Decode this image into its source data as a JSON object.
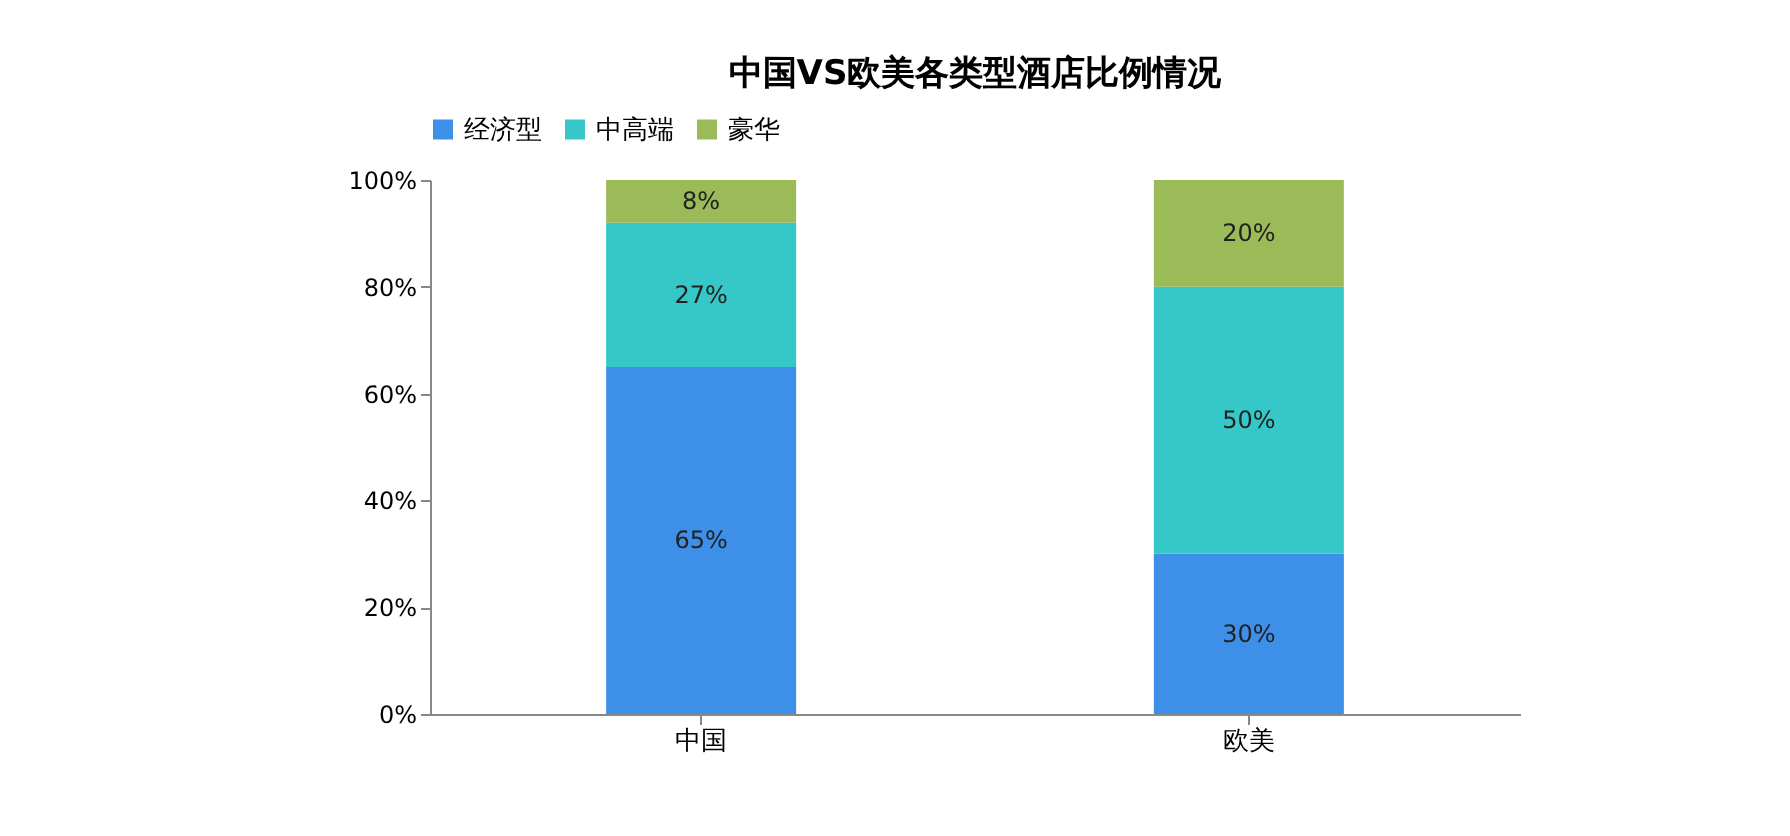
{
  "chart_data": {
    "type": "bar",
    "stacked": true,
    "title": "中国VS欧美各类型酒店比例情况",
    "categories": [
      "中国",
      "欧美"
    ],
    "series": [
      {
        "name": "经济型",
        "color": "#3d8fe8",
        "values": [
          65,
          30
        ],
        "value_labels": [
          "65%",
          "30%"
        ]
      },
      {
        "name": "中高端",
        "color": "#36c8c8",
        "values": [
          27,
          50
        ],
        "value_labels": [
          "27%",
          "50%"
        ]
      },
      {
        "name": "豪华",
        "color": "#9bbb59",
        "values": [
          8,
          20
        ],
        "value_labels": [
          "8%",
          "20%"
        ]
      }
    ],
    "ylim": [
      0,
      100
    ],
    "yticks": [
      {
        "value": 0,
        "label": "0%"
      },
      {
        "value": 20,
        "label": "20%"
      },
      {
        "value": 40,
        "label": "40%"
      },
      {
        "value": 60,
        "label": "60%"
      },
      {
        "value": 80,
        "label": "80%"
      },
      {
        "value": 100,
        "label": "100%"
      }
    ],
    "legend": "top",
    "grid": false
  }
}
